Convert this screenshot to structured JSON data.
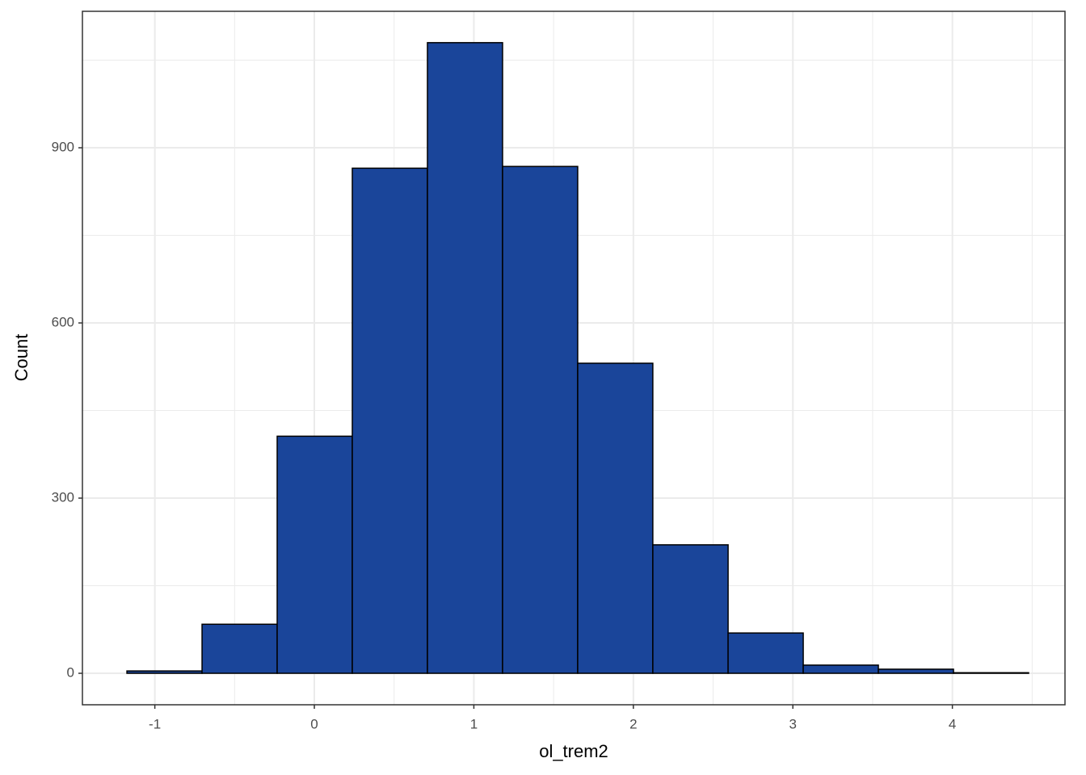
{
  "chart_data": {
    "type": "histogram",
    "x_label": "ol_trem2",
    "y_label": "Count",
    "bins": [
      -1.175,
      -0.704,
      -0.233,
      0.238,
      0.709,
      1.18,
      1.651,
      2.122,
      2.594,
      3.065,
      3.536,
      4.007,
      4.478
    ],
    "values": [
      4,
      84,
      406,
      865,
      1080,
      868,
      531,
      220,
      69,
      14,
      7,
      1
    ],
    "color": "#1a459a",
    "edge_color": "#000000",
    "xlim": [
      -1.454,
      4.706
    ],
    "xticks": [
      -1,
      0,
      1,
      2,
      3,
      4
    ],
    "ylim": [
      -53.9,
      1133.7
    ],
    "yticks": [
      0,
      300,
      600,
      900
    ],
    "grid": true
  }
}
